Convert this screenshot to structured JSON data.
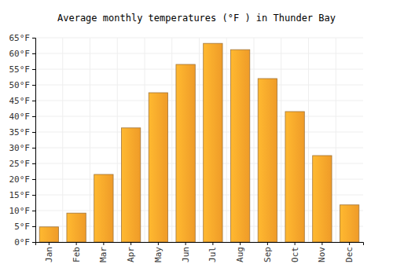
{
  "chart_data": {
    "type": "bar",
    "title": "Average monthly temperatures (°F ) in Thunder Bay",
    "categories": [
      "Jan",
      "Feb",
      "Mar",
      "Apr",
      "May",
      "Jun",
      "Jul",
      "Aug",
      "Sep",
      "Oct",
      "Nov",
      "Dec"
    ],
    "values": [
      4.8,
      9.2,
      21.5,
      36.3,
      47.5,
      56.5,
      63.2,
      61.2,
      52,
      41.5,
      27.5,
      11.8
    ],
    "color": "#fca32a",
    "ylim": [
      0,
      65
    ],
    "yticks": [
      {
        "value": 0,
        "label": "0°F"
      },
      {
        "value": 5,
        "label": "5°F"
      },
      {
        "value": 10,
        "label": "10°F"
      },
      {
        "value": 15,
        "label": "15°F"
      },
      {
        "value": 20,
        "label": "20°F"
      },
      {
        "value": 25,
        "label": "25°F"
      },
      {
        "value": 30,
        "label": "30°F"
      },
      {
        "value": 35,
        "label": "35°F"
      },
      {
        "value": 40,
        "label": "40°F"
      },
      {
        "value": 45,
        "label": "45°F"
      },
      {
        "value": 50,
        "label": "50°F"
      },
      {
        "value": 55,
        "label": "55°F"
      },
      {
        "value": 60,
        "label": "60°F"
      },
      {
        "value": 65,
        "label": "65°F"
      }
    ],
    "grid": true
  }
}
